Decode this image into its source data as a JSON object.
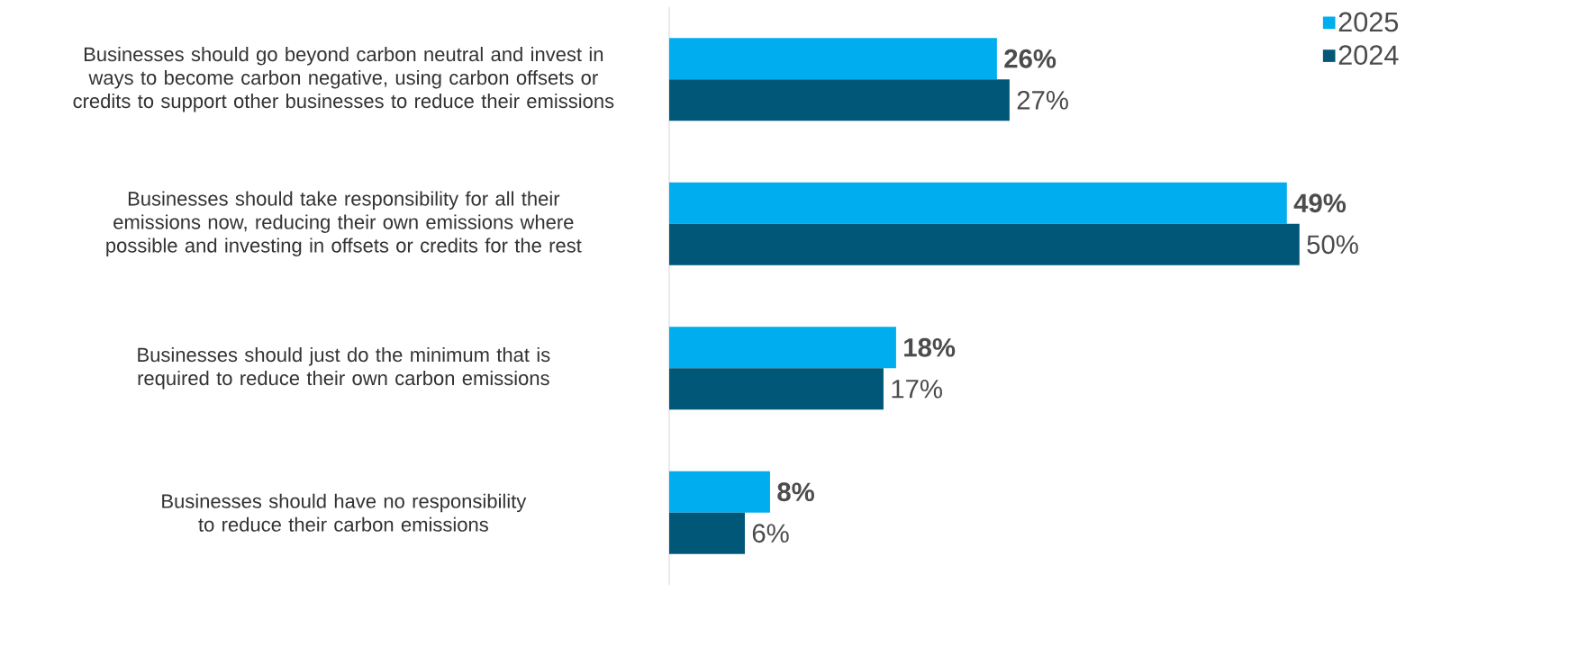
{
  "chart_data": {
    "type": "bar",
    "orientation": "horizontal",
    "categories": [
      "Businesses should go beyond carbon neutral and invest in ways to become carbon negative, using carbon offsets or credits to support  other businesses to reduce their emissions",
      "Businesses should take responsibility for all their emissions now, reducing their own emissions where possible and investing in offsets or credits for the rest",
      "Businesses should just do the minimum that is required to reduce their own carbon emissions",
      "Businesses should have no responsibility to reduce their carbon emissions"
    ],
    "series": [
      {
        "name": "2025",
        "color": "#00adef",
        "values": [
          26,
          49,
          18,
          8
        ],
        "value_labels": [
          "26%",
          "49%",
          "18%",
          "8%"
        ]
      },
      {
        "name": "2024",
        "color": "#005778",
        "values": [
          27,
          50,
          17,
          6
        ],
        "value_labels": [
          "27%",
          "50%",
          "17%",
          "6%"
        ]
      }
    ],
    "legend": "top right"
  }
}
